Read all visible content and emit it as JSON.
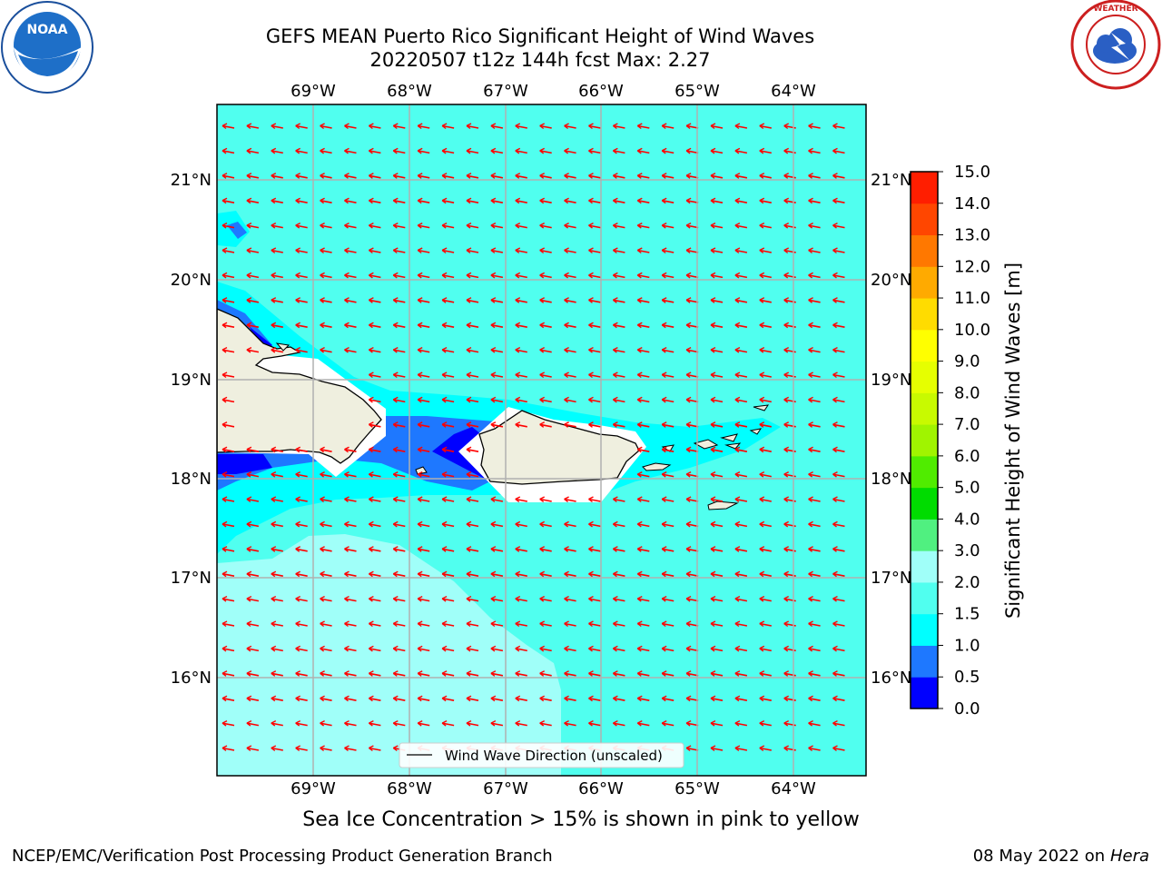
{
  "header": {
    "title_line1": "GEFS MEAN Puerto Rico Significant Height of Wind Waves",
    "title_line2": "20220507 t12z 144h fcst   Max: 2.27"
  },
  "logos": {
    "left": {
      "text": "NOAA",
      "ring_text": "NATIONAL OCEANIC AND ATMOSPHERIC ADMINISTRATION · U.S. DEPARTMENT OF COMMERCE",
      "icon": "noaa-logo"
    },
    "right": {
      "text": "NATIONAL WEATHER SERVICE",
      "icon": "nws-logo"
    }
  },
  "map": {
    "lon_labels": [
      "69°W",
      "68°W",
      "67°W",
      "66°W",
      "65°W",
      "64°W"
    ],
    "lat_labels": [
      "21°N",
      "20°N",
      "19°N",
      "18°N",
      "17°N",
      "16°N"
    ],
    "legend_label": "Wind Wave Direction (unscaled)",
    "arrow_color": "#ff0000",
    "arrow_direction": "toward west-northwest"
  },
  "colorbar": {
    "label": "Significant Height of Wind Waves [m]",
    "ticks": [
      "0.0",
      "0.5",
      "1.0",
      "1.5",
      "2.0",
      "3.0",
      "4.0",
      "5.0",
      "6.0",
      "7.0",
      "8.0",
      "9.0",
      "10.0",
      "11.0",
      "12.0",
      "13.0",
      "14.0",
      "15.0"
    ],
    "colors": [
      "#0000ff",
      "#1e78ff",
      "#00ffff",
      "#50ffef",
      "#a0fff9",
      "#50f080",
      "#00dc00",
      "#50ec00",
      "#a0f400",
      "#c8fa00",
      "#e6ff00",
      "#ffff00",
      "#ffdc00",
      "#ffaa00",
      "#ff7800",
      "#ff4600",
      "#ff1e00"
    ]
  },
  "caption": "Sea Ice Concentration > 15% is shown in pink to yellow",
  "footer": {
    "left": "NCEP/EMC/Verification Post Processing Product Generation Branch",
    "right_date": "08 May 2022 on",
    "right_host": "Hera"
  }
}
